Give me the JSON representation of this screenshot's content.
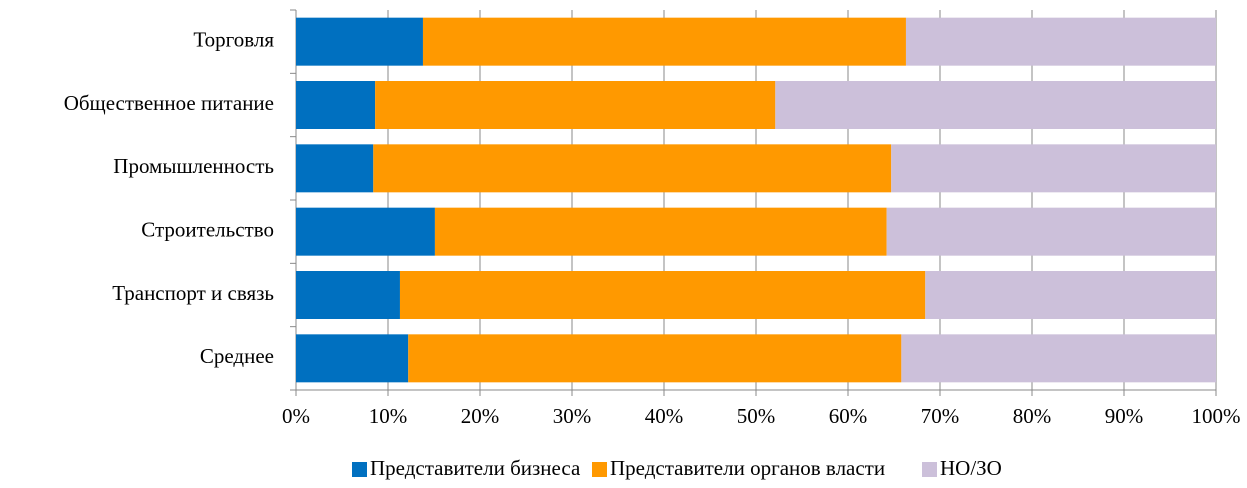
{
  "chart_data": {
    "type": "stacked_barh",
    "categories": [
      "Торговля",
      "Общественное питание",
      "Промышленность",
      "Строительство",
      "Транспорт и связь",
      "Среднее"
    ],
    "series": [
      {
        "name": "Представители бизнеса",
        "color": "#0070c0",
        "values": [
          13.8,
          8.6,
          8.4,
          15.1,
          11.3,
          12.2
        ]
      },
      {
        "name": "Представители органов власти",
        "color": "#ff9900",
        "values": [
          52.5,
          43.5,
          56.3,
          49.1,
          57.1,
          53.6
        ]
      },
      {
        "name": "НО/ЗО",
        "color": "#ccc0da",
        "values": [
          33.7,
          47.9,
          35.3,
          35.8,
          31.6,
          34.2
        ]
      }
    ],
    "xlim": [
      0,
      100
    ],
    "xticks": [
      {
        "value": 0,
        "label": "0%"
      },
      {
        "value": 10,
        "label": "10%"
      },
      {
        "value": 20,
        "label": "20%"
      },
      {
        "value": 30,
        "label": "30%"
      },
      {
        "value": 40,
        "label": "40%"
      },
      {
        "value": 50,
        "label": "50%"
      },
      {
        "value": 60,
        "label": "60%"
      },
      {
        "value": 70,
        "label": "70%"
      },
      {
        "value": 80,
        "label": "80%"
      },
      {
        "value": 90,
        "label": "90%"
      },
      {
        "value": 100,
        "label": "100%"
      }
    ],
    "grid": true,
    "legend": "bottom"
  }
}
